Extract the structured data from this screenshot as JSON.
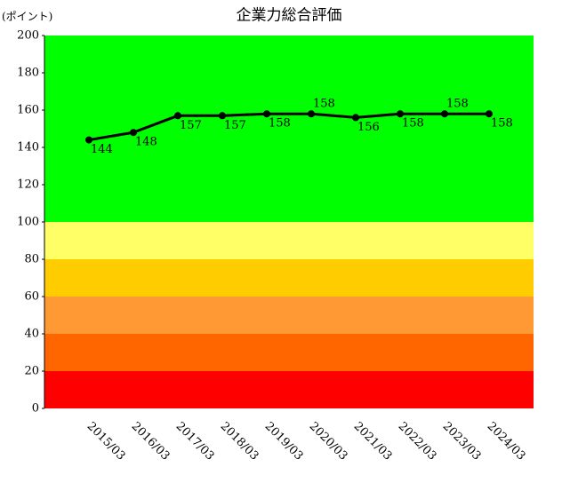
{
  "chart_data": {
    "type": "line",
    "title": "企業力総合評価",
    "y_label": "(ポイント)",
    "categories": [
      "2015/03",
      "2016/03",
      "2017/03",
      "2018/03",
      "2019/03",
      "2020/03",
      "2021/03",
      "2022/03",
      "2023/03",
      "2024/03"
    ],
    "series": [
      {
        "name": "企業力総合評価",
        "color": "#000000",
        "values": [
          144,
          148,
          157,
          157,
          158,
          158,
          156,
          158,
          158,
          158
        ]
      }
    ],
    "ylim": [
      0,
      200
    ],
    "yticks": [
      0,
      20,
      40,
      60,
      80,
      100,
      120,
      140,
      160,
      180,
      200
    ],
    "bands": [
      {
        "from": 0,
        "to": 20,
        "color": "#ff0000"
      },
      {
        "from": 20,
        "to": 40,
        "color": "#ff6600"
      },
      {
        "from": 40,
        "to": 60,
        "color": "#ff9933"
      },
      {
        "from": 60,
        "to": 80,
        "color": "#ffcc00"
      },
      {
        "from": 80,
        "to": 100,
        "color": "#ffff66"
      },
      {
        "from": 100,
        "to": 200,
        "color": "#00ff00"
      }
    ]
  }
}
